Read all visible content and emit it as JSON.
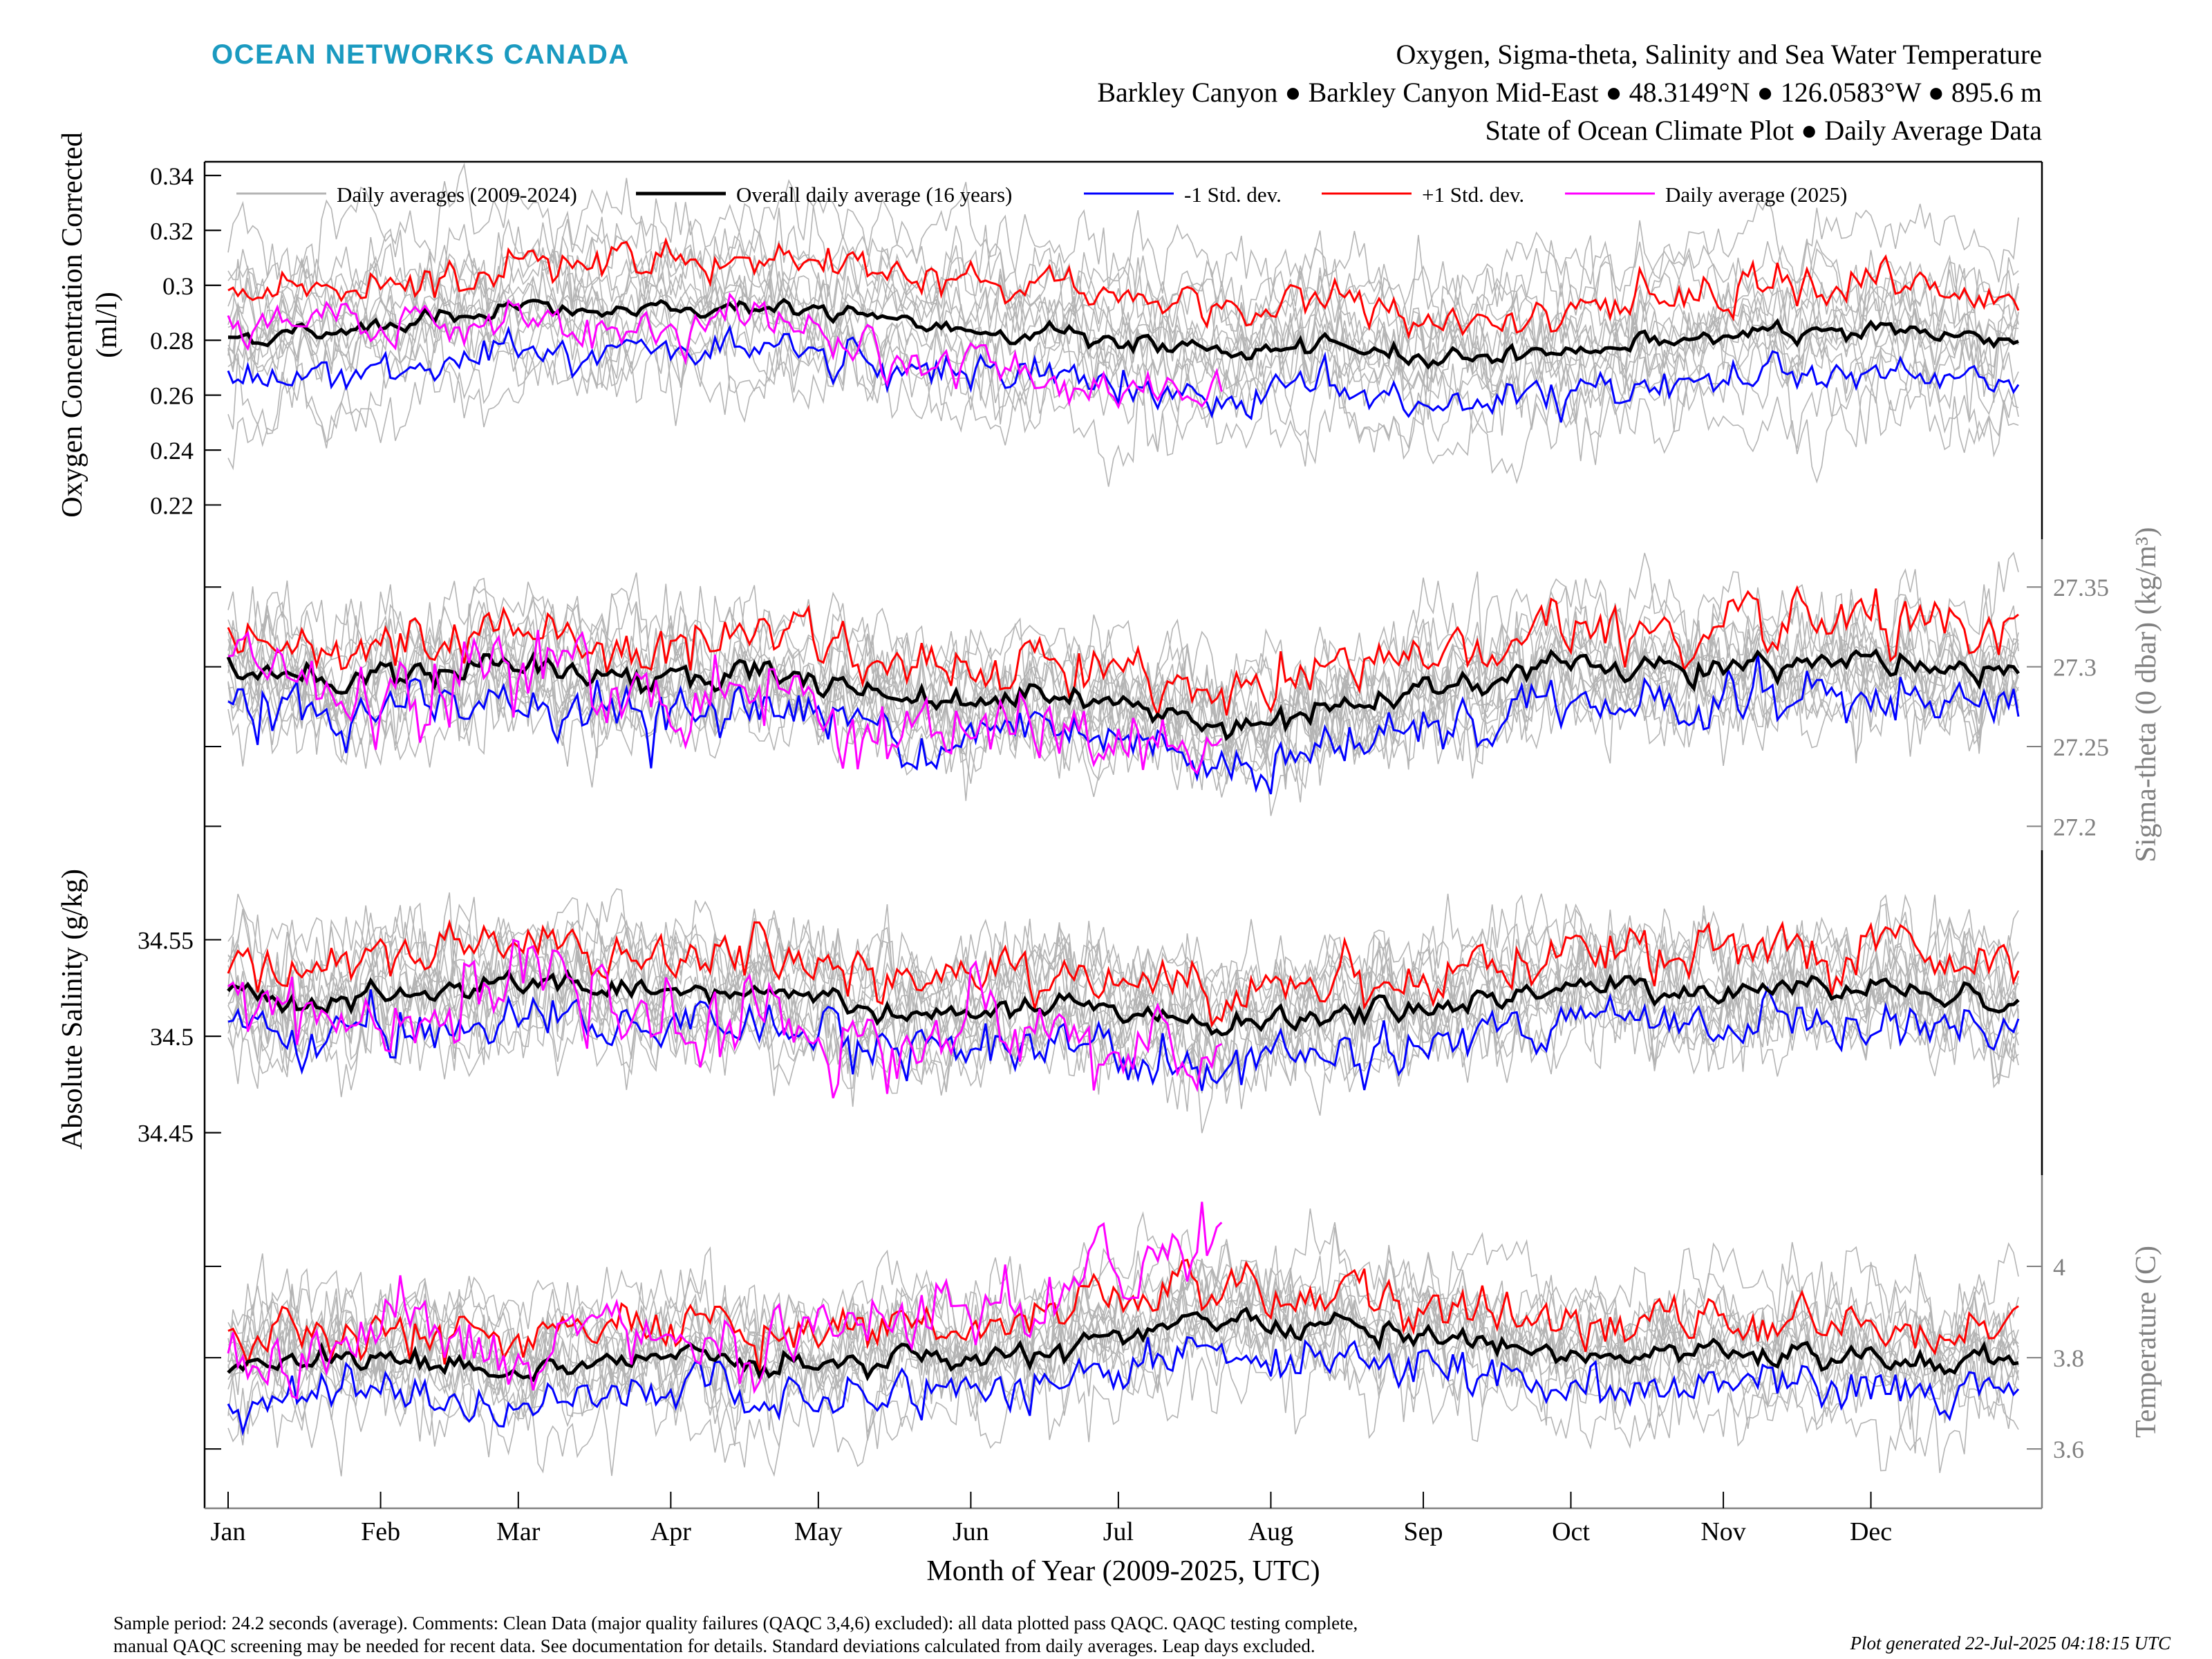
{
  "header": {
    "brand": "OCEAN NETWORKS CANADA",
    "brand_color": "#1A9AC0",
    "title_line1": "Oxygen, Sigma-theta, Salinity and Sea Water Temperature",
    "title_line2": "Barkley Canyon ● Barkley Canyon Mid-East ● 48.3149°N ● 126.0583°W ● 895.6 m",
    "title_line3": "State of Ocean Climate Plot ● Daily Average Data"
  },
  "footer": {
    "note_line1": "Sample period: 24.2 seconds (average). Comments: Clean Data (major quality failures (QAQC 3,4,6) excluded): all data plotted pass QAQC. QAQC testing complete,",
    "note_line2": "manual QAQC screening may be needed for recent data. See documentation for details. Standard deviations calculated from daily averages. Leap days excluded.",
    "generated": "Plot generated 22-Jul-2025 04:18:15 UTC"
  },
  "chart_data": {
    "type": "line",
    "xlabel": "Month of Year (2009-2025, UTC)",
    "months": [
      "Jan",
      "Feb",
      "Mar",
      "Apr",
      "May",
      "Jun",
      "Jul",
      "Aug",
      "Sep",
      "Oct",
      "Nov",
      "Dec"
    ],
    "x_days": [
      1,
      32,
      60,
      91,
      121,
      152,
      182,
      213,
      244,
      274,
      305,
      335
    ],
    "xlim": [
      1,
      365
    ],
    "legend": [
      {
        "label": "Daily averages (2009-2024)",
        "color": "#b4b4b4"
      },
      {
        "label": "Overall daily average (16 years)",
        "color": "#000000"
      },
      {
        "label": "-1 Std. dev.",
        "color": "#0000ff"
      },
      {
        "label": "+1 Std. dev.",
        "color": "#ff0000"
      },
      {
        "label": "Daily average (2025)",
        "color": "#ff00ff"
      }
    ],
    "colors": {
      "historical": "#b4b4b4",
      "mean": "#000000",
      "minus": "#0000ff",
      "plus": "#ff0000",
      "current": "#ff00ff",
      "axis_right": "#808080"
    },
    "current_year_last_day": 203,
    "panels": [
      {
        "name": "oxygen",
        "ylabel": "Oxygen Concentration Corrected",
        "ylabel2": "(ml/l)",
        "side": "left",
        "ylim": [
          0.2,
          0.345
        ],
        "ticks": [
          "0.22",
          "0.24",
          "0.26",
          "0.28",
          "0.3",
          "0.32",
          "0.34"
        ],
        "tick_values": [
          0.22,
          0.24,
          0.26,
          0.28,
          0.3,
          0.32,
          0.34
        ],
        "mean_anchors": [
          [
            1,
            0.281
          ],
          [
            20,
            0.283
          ],
          [
            40,
            0.288
          ],
          [
            60,
            0.292
          ],
          [
            75,
            0.29
          ],
          [
            95,
            0.291
          ],
          [
            110,
            0.293
          ],
          [
            130,
            0.288
          ],
          [
            150,
            0.284
          ],
          [
            170,
            0.283
          ],
          [
            185,
            0.279
          ],
          [
            200,
            0.276
          ],
          [
            213,
            0.276
          ],
          [
            230,
            0.277
          ],
          [
            244,
            0.274
          ],
          [
            260,
            0.275
          ],
          [
            274,
            0.276
          ],
          [
            290,
            0.28
          ],
          [
            305,
            0.281
          ],
          [
            320,
            0.282
          ],
          [
            335,
            0.285
          ],
          [
            350,
            0.282
          ],
          [
            365,
            0.281
          ]
        ],
        "std": 0.016,
        "mean_noise": 0.0015,
        "band_noise": 0.0025,
        "hist_noise": 0.006,
        "hist_spread": 0.017,
        "current_anchors": [
          [
            1,
            0.283
          ],
          [
            15,
            0.285
          ],
          [
            30,
            0.287
          ],
          [
            45,
            0.286
          ],
          [
            60,
            0.289
          ],
          [
            75,
            0.28
          ],
          [
            85,
            0.285
          ],
          [
            95,
            0.283
          ],
          [
            105,
            0.287
          ],
          [
            115,
            0.284
          ],
          [
            125,
            0.277
          ],
          [
            135,
            0.274
          ],
          [
            150,
            0.272
          ],
          [
            165,
            0.268
          ],
          [
            180,
            0.264
          ],
          [
            190,
            0.262
          ],
          [
            198,
            0.264
          ],
          [
            203,
            0.266
          ]
        ],
        "current_noise": 0.003
      },
      {
        "name": "sigma_theta",
        "ylabel": "Sigma-theta (0 dbar) (kg/m³)",
        "side": "right",
        "ylim": [
          27.185,
          27.38
        ],
        "ticks": [
          "27.2",
          "27.25",
          "27.3",
          "27.35"
        ],
        "tick_values": [
          27.2,
          27.25,
          27.3,
          27.35
        ],
        "mean_anchors": [
          [
            1,
            27.3
          ],
          [
            20,
            27.29
          ],
          [
            40,
            27.295
          ],
          [
            60,
            27.305
          ],
          [
            75,
            27.295
          ],
          [
            95,
            27.29
          ],
          [
            110,
            27.3
          ],
          [
            130,
            27.285
          ],
          [
            150,
            27.28
          ],
          [
            170,
            27.285
          ],
          [
            185,
            27.275
          ],
          [
            200,
            27.265
          ],
          [
            213,
            27.27
          ],
          [
            230,
            27.275
          ],
          [
            244,
            27.28
          ],
          [
            260,
            27.295
          ],
          [
            274,
            27.305
          ],
          [
            290,
            27.3
          ],
          [
            305,
            27.3
          ],
          [
            320,
            27.305
          ],
          [
            335,
            27.305
          ],
          [
            350,
            27.295
          ],
          [
            365,
            27.295
          ]
        ],
        "std": 0.022,
        "mean_noise": 0.004,
        "band_noise": 0.006,
        "hist_noise": 0.012,
        "hist_spread": 0.022,
        "current_anchors": [
          [
            1,
            27.305
          ],
          [
            10,
            27.3
          ],
          [
            25,
            27.275
          ],
          [
            40,
            27.275
          ],
          [
            55,
            27.3
          ],
          [
            65,
            27.305
          ],
          [
            80,
            27.285
          ],
          [
            95,
            27.28
          ],
          [
            110,
            27.29
          ],
          [
            125,
            27.265
          ],
          [
            140,
            27.26
          ],
          [
            155,
            27.255
          ],
          [
            170,
            27.26
          ],
          [
            185,
            27.245
          ],
          [
            195,
            27.24
          ],
          [
            203,
            27.235
          ]
        ],
        "current_noise": 0.01
      },
      {
        "name": "salinity",
        "ylabel": "Absolute Salinity (g/kg)",
        "side": "left",
        "ylim": [
          34.428,
          34.6
        ],
        "ticks": [
          "34.45",
          "34.5",
          "34.55"
        ],
        "tick_values": [
          34.45,
          34.5,
          34.55
        ],
        "mean_anchors": [
          [
            1,
            34.525
          ],
          [
            20,
            34.518
          ],
          [
            40,
            34.52
          ],
          [
            60,
            34.53
          ],
          [
            75,
            34.52
          ],
          [
            95,
            34.52
          ],
          [
            110,
            34.525
          ],
          [
            130,
            34.515
          ],
          [
            150,
            34.51
          ],
          [
            170,
            34.515
          ],
          [
            185,
            34.51
          ],
          [
            200,
            34.505
          ],
          [
            213,
            34.51
          ],
          [
            230,
            34.51
          ],
          [
            244,
            34.515
          ],
          [
            260,
            34.52
          ],
          [
            274,
            34.525
          ],
          [
            290,
            34.525
          ],
          [
            305,
            34.525
          ],
          [
            320,
            34.525
          ],
          [
            335,
            34.528
          ],
          [
            350,
            34.52
          ],
          [
            365,
            34.52
          ]
        ],
        "std": 0.018,
        "mean_noise": 0.003,
        "band_noise": 0.005,
        "hist_noise": 0.01,
        "hist_spread": 0.018,
        "current_anchors": [
          [
            1,
            34.53
          ],
          [
            10,
            34.52
          ],
          [
            25,
            34.505
          ],
          [
            40,
            34.51
          ],
          [
            55,
            34.52
          ],
          [
            65,
            34.53
          ],
          [
            80,
            34.51
          ],
          [
            95,
            34.505
          ],
          [
            110,
            34.515
          ],
          [
            125,
            34.495
          ],
          [
            140,
            34.495
          ],
          [
            155,
            34.515
          ],
          [
            165,
            34.505
          ],
          [
            180,
            34.49
          ],
          [
            195,
            34.485
          ],
          [
            203,
            34.485
          ]
        ],
        "current_noise": 0.008
      },
      {
        "name": "temperature",
        "ylabel": "Temperature (C)",
        "side": "right",
        "ylim": [
          3.47,
          4.2
        ],
        "ticks": [
          "3.6",
          "3.8",
          "4"
        ],
        "tick_values": [
          3.6,
          3.8,
          4.0
        ],
        "mean_anchors": [
          [
            1,
            3.78
          ],
          [
            20,
            3.8
          ],
          [
            40,
            3.79
          ],
          [
            60,
            3.76
          ],
          [
            75,
            3.79
          ],
          [
            95,
            3.8
          ],
          [
            110,
            3.78
          ],
          [
            130,
            3.8
          ],
          [
            150,
            3.81
          ],
          [
            170,
            3.82
          ],
          [
            185,
            3.85
          ],
          [
            200,
            3.88
          ],
          [
            213,
            3.87
          ],
          [
            230,
            3.87
          ],
          [
            244,
            3.85
          ],
          [
            260,
            3.82
          ],
          [
            274,
            3.81
          ],
          [
            290,
            3.8
          ],
          [
            305,
            3.8
          ],
          [
            320,
            3.8
          ],
          [
            335,
            3.8
          ],
          [
            350,
            3.79
          ],
          [
            365,
            3.79
          ]
        ],
        "std": 0.07,
        "mean_noise": 0.012,
        "band_noise": 0.018,
        "hist_noise": 0.04,
        "hist_spread": 0.07,
        "current_anchors": [
          [
            1,
            3.72
          ],
          [
            15,
            3.8
          ],
          [
            30,
            3.87
          ],
          [
            45,
            3.85
          ],
          [
            60,
            3.78
          ],
          [
            75,
            3.82
          ],
          [
            90,
            3.85
          ],
          [
            105,
            3.8
          ],
          [
            120,
            3.82
          ],
          [
            135,
            3.88
          ],
          [
            150,
            3.87
          ],
          [
            165,
            3.92
          ],
          [
            180,
            3.98
          ],
          [
            195,
            4.05
          ],
          [
            203,
            4.1
          ]
        ],
        "current_noise": 0.035
      }
    ]
  }
}
